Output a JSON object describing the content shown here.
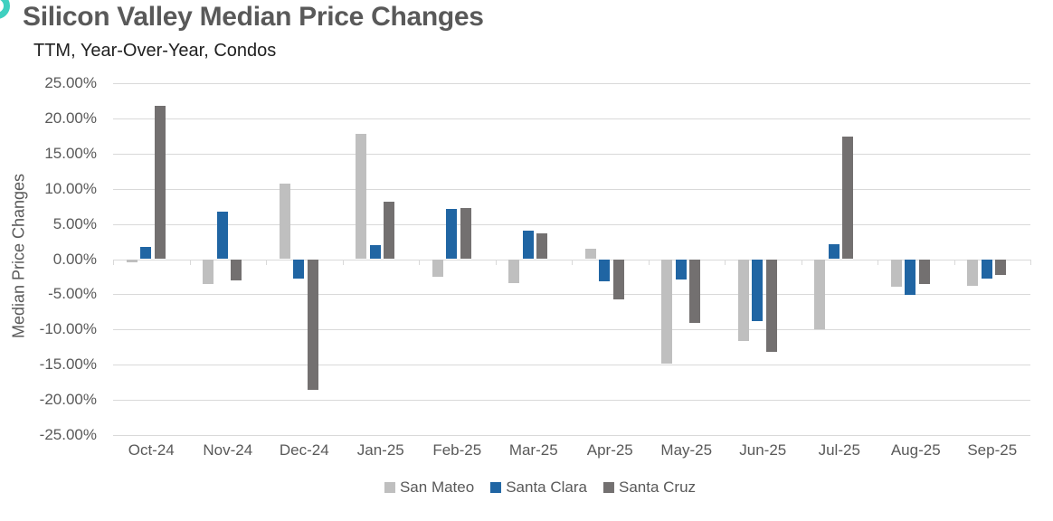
{
  "branding": {
    "corner_dot_color": "#3fd0c0"
  },
  "chart_data": {
    "type": "bar",
    "title": "Silicon Valley Median Price Changes",
    "subtitle": "TTM, Year-Over-Year, Condos",
    "ylabel": "Median Price Changes",
    "xlabel": "",
    "categories": [
      "Oct-24",
      "Nov-24",
      "Dec-24",
      "Jan-25",
      "Feb-25",
      "Mar-25",
      "Apr-25",
      "May-25",
      "Jun-25",
      "Jul-25",
      "Aug-25",
      "Sep-25"
    ],
    "series": [
      {
        "name": "San Mateo",
        "color": "#bfbfbf",
        "values": [
          -0.4,
          -3.5,
          10.7,
          17.8,
          -2.5,
          -3.4,
          1.5,
          -14.9,
          -11.6,
          -10.0,
          -3.9,
          -3.8
        ]
      },
      {
        "name": "Santa Clara",
        "color": "#2065a3",
        "values": [
          1.7,
          6.8,
          -2.7,
          2.0,
          7.1,
          4.0,
          -3.2,
          -2.9,
          -8.8,
          2.1,
          -5.1,
          -2.8
        ]
      },
      {
        "name": "Santa Cruz",
        "color": "#737070",
        "values": [
          21.8,
          -3.0,
          -18.6,
          8.2,
          7.3,
          3.7,
          -5.7,
          -9.0,
          -13.2,
          17.4,
          -3.5,
          -2.3
        ]
      }
    ],
    "ylim": [
      -25,
      25
    ],
    "ytick_step": 5,
    "ytick_format": "0.00%",
    "grid": true,
    "legend_position": "bottom"
  }
}
